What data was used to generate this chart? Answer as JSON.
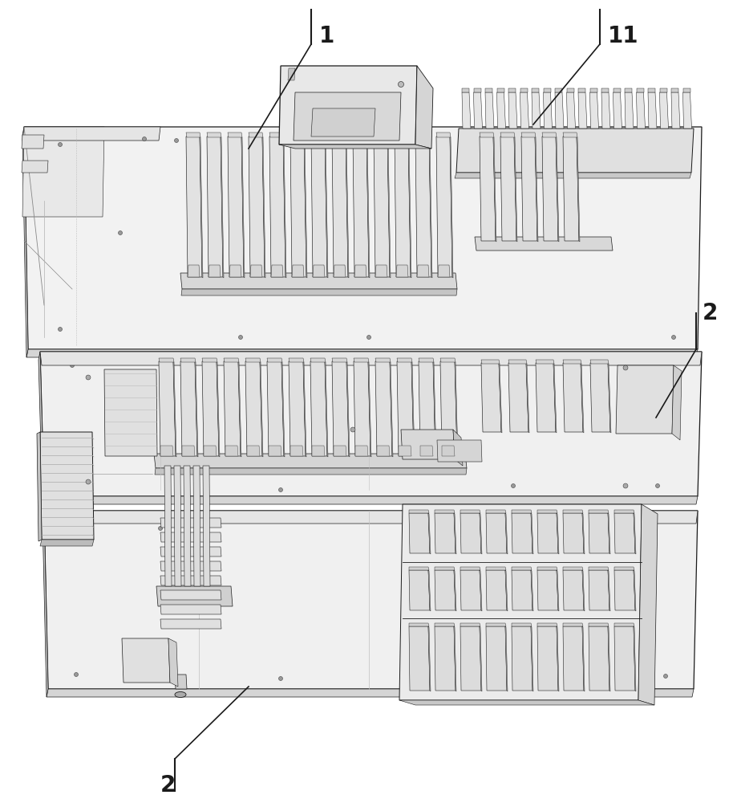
{
  "bg_color": "#ffffff",
  "lc": "#1a1a1a",
  "fc_board": "#f5f5f5",
  "fc_board2": "#efefef",
  "fc_edge": "#d8d8d8",
  "fc_dark": "#c8c8c8",
  "fc_mod": "#e8e8e8",
  "fc_mod2": "#d5d5d5",
  "lw_board": 0.9,
  "lw_mod": 0.55,
  "lw_thin": 0.4,
  "lw_label": 1.4,
  "label_fontsize": 20,
  "figsize": [
    9.19,
    10.0
  ],
  "dpi": 100
}
